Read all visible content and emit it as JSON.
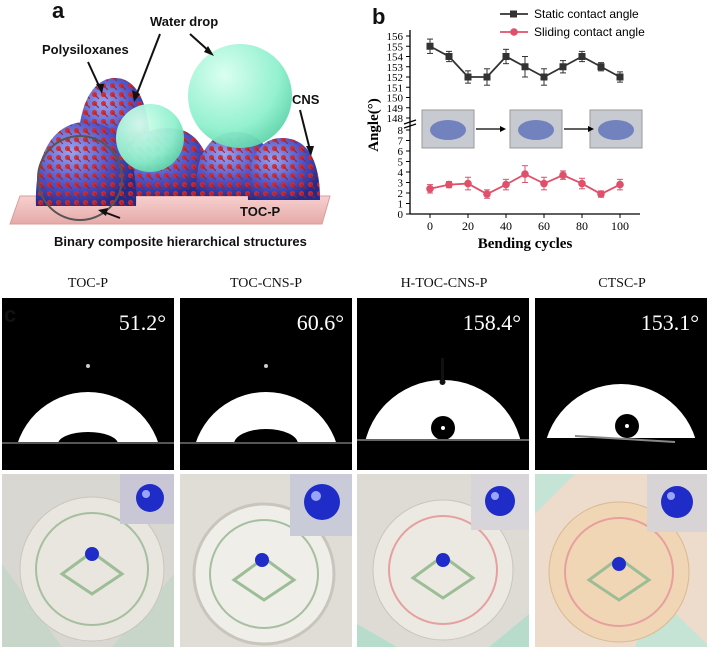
{
  "panel_a": {
    "letter": "a",
    "labels": {
      "water_drop": "Water drop",
      "polysiloxanes": "Polysiloxanes",
      "cns": "CNS",
      "toc_p": "TOC-P",
      "caption": "Binary composite hierarchical structures"
    },
    "colors": {
      "substrate": "#f2c4c4",
      "bumps": "#4d56c8",
      "particles": "#d02828",
      "drops": "#8ff2cc"
    }
  },
  "panel_b": {
    "letter": "b"
  },
  "chart_data": {
    "type": "line",
    "xlabel": "Bending cycles",
    "ylabel": "Angle(°)",
    "x": [
      0,
      10,
      20,
      30,
      40,
      50,
      60,
      70,
      80,
      90,
      100
    ],
    "xticks": [
      "0",
      "20",
      "40",
      "60",
      "80",
      "100"
    ],
    "yticks_upper": [
      "148",
      "149",
      "150",
      "151",
      "152",
      "153",
      "154",
      "155",
      "156"
    ],
    "yticks_lower": [
      "0",
      "1",
      "2",
      "3",
      "4",
      "5",
      "6",
      "7",
      "8"
    ],
    "series": [
      {
        "name": "Static contact angle",
        "color": "#333333",
        "marker": "square",
        "values": [
          155,
          154,
          152,
          152,
          154,
          153,
          152,
          153,
          154,
          153,
          152
        ],
        "errors": [
          0.7,
          0.5,
          0.6,
          0.8,
          0.7,
          1.0,
          0.8,
          0.6,
          0.5,
          0.4,
          0.5
        ]
      },
      {
        "name": "Sliding contact angle",
        "color": "#e0506a",
        "marker": "circle",
        "values": [
          2.4,
          2.8,
          2.9,
          1.9,
          2.8,
          3.8,
          2.9,
          3.7,
          2.9,
          1.9,
          2.8
        ],
        "errors": [
          0.4,
          0.3,
          0.6,
          0.4,
          0.5,
          0.8,
          0.6,
          0.4,
          0.5,
          0.3,
          0.5
        ]
      }
    ]
  },
  "panel_c": {
    "letter": "c",
    "samples": [
      {
        "name": "TOC-P",
        "angle": "51.2°"
      },
      {
        "name": "TOC-CNS-P",
        "angle": "60.6°"
      },
      {
        "name": "H-TOC-CNS-P",
        "angle": "158.4°"
      },
      {
        "name": "CTSC-P",
        "angle": "153.1°"
      }
    ],
    "colors": {
      "drop": "#1f2cc8",
      "stamp": "#9fbe9a"
    }
  }
}
